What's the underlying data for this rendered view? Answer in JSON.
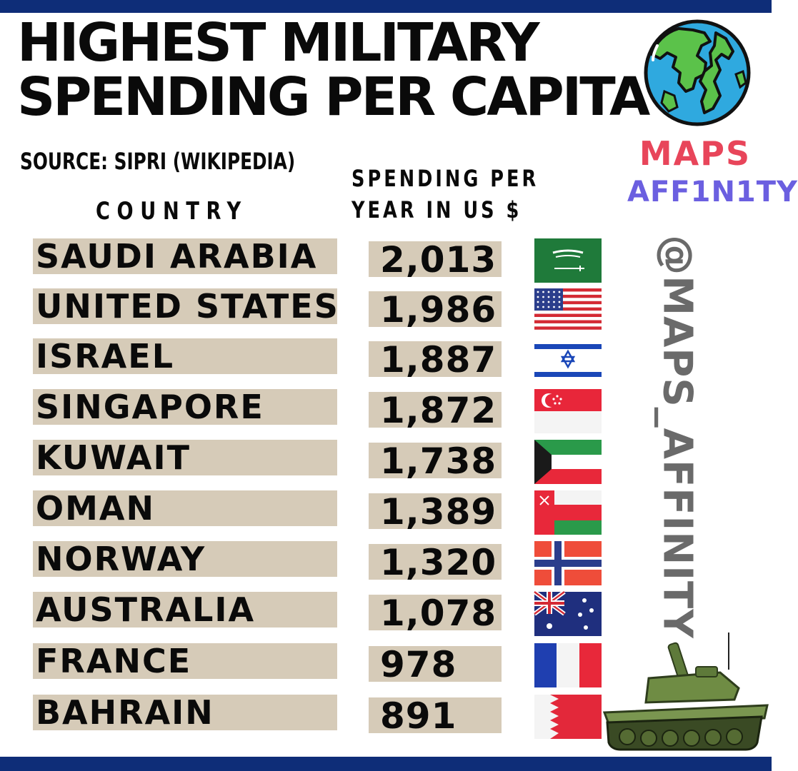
{
  "header": {
    "title_line1": "HIGHEST MILITARY",
    "title_line2": "SPENDING PER CAPITA",
    "source": "SOURCE: SIPRI (WIKIPEDIA)",
    "col_country": "COUNTRY",
    "col_spending_line1": "SPENDING PER",
    "col_spending_line2": "YEAR IN US $"
  },
  "brand": {
    "line1": "MAPS",
    "line2": "AFF1N1TY",
    "handle": "@MAPS_AFFINITY"
  },
  "colors": {
    "frame": "#0e2d78",
    "row_box": "#d6cbb8",
    "brand_maps": "#e8455a",
    "brand_affinity": "#6b5fe0",
    "handle": "#6a6a6a"
  },
  "chart_data": {
    "type": "table",
    "title": "HIGHEST MILITARY SPENDING PER CAPITA",
    "subtitle": "SOURCE: SIPRI (WIKIPEDIA)",
    "columns": [
      "COUNTRY",
      "SPENDING PER YEAR IN US $"
    ],
    "rows": [
      {
        "country": "SAUDI ARABIA",
        "value": "2,013",
        "flag_icon": "saudi-arabia-flag-icon"
      },
      {
        "country": "UNITED STATES",
        "value": "1,986",
        "flag_icon": "united-states-flag-icon"
      },
      {
        "country": "ISRAEL",
        "value": "1,887",
        "flag_icon": "israel-flag-icon"
      },
      {
        "country": "SINGAPORE",
        "value": "1,872",
        "flag_icon": "singapore-flag-icon"
      },
      {
        "country": "KUWAIT",
        "value": "1,738",
        "flag_icon": "kuwait-flag-icon"
      },
      {
        "country": "OMAN",
        "value": "1,389",
        "flag_icon": "oman-flag-icon"
      },
      {
        "country": "NORWAY",
        "value": "1,320",
        "flag_icon": "norway-flag-icon"
      },
      {
        "country": "AUSTRALIA",
        "value": "1,078",
        "flag_icon": "australia-flag-icon"
      },
      {
        "country": "FRANCE",
        "value": "978",
        "flag_icon": "france-flag-icon"
      },
      {
        "country": "BAHRAIN",
        "value": "891",
        "flag_icon": "bahrain-flag-icon"
      }
    ]
  }
}
